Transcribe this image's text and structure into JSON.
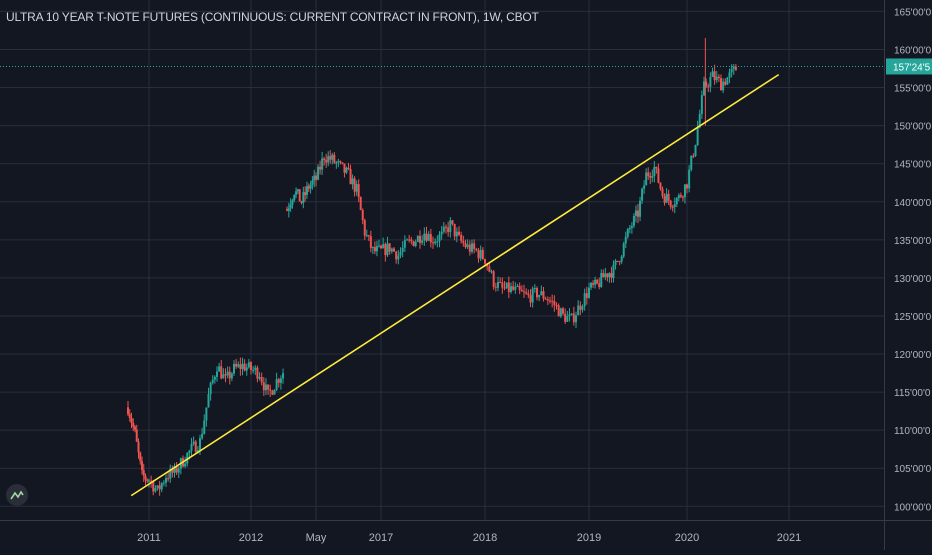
{
  "chart_data": {
    "type": "candlestick",
    "title": "ULTRA 10 YEAR T-NOTE FUTURES (CONTINUOUS: CURRENT CONTRACT IN FRONT), 1W, CBOT",
    "interval": "1W",
    "exchange": "CBOT",
    "y_ticks": [
      "165'00'0",
      "160'00'0",
      "155'00'0",
      "150'00'0",
      "145'00'0",
      "140'00'0",
      "135'00'0",
      "130'00'0",
      "125'00'0",
      "120'00'0",
      "115'00'0",
      "110'00'0",
      "105'00'0",
      "100'00'0"
    ],
    "y_tick_values": [
      165,
      160,
      155,
      150,
      145,
      140,
      135,
      130,
      125,
      120,
      115,
      110,
      105,
      100
    ],
    "ylim": [
      98.2,
      166.5
    ],
    "x_ticks": [
      {
        "label": "2011",
        "date": "2011-01"
      },
      {
        "label": "2012",
        "date": "2012-01"
      },
      {
        "label": "May",
        "date": "2016-05"
      },
      {
        "label": "2017",
        "date": "2017-01"
      },
      {
        "label": "2018",
        "date": "2018-01"
      },
      {
        "label": "2019",
        "date": "2019-01"
      },
      {
        "label": "2020",
        "date": "2020-01"
      },
      {
        "label": "2021",
        "date": "2021-01"
      }
    ],
    "last_price_label": "157'24'5",
    "last_price": 157.77,
    "price_path": [
      [
        "2010-10",
        113
      ],
      [
        "2010-11",
        109.5
      ],
      [
        "2010-12",
        104
      ],
      [
        "2011-01",
        103.5
      ],
      [
        "2011-02",
        102
      ],
      [
        "2011-03",
        104
      ],
      [
        "2011-04",
        104.5
      ],
      [
        "2011-05",
        106
      ],
      [
        "2011-06",
        107.5
      ],
      [
        "2011-07",
        108.5
      ],
      [
        "2011-08",
        114.5
      ],
      [
        "2011-09",
        118.5
      ],
      [
        "2011-10",
        116.5
      ],
      [
        "2011-11",
        118
      ],
      [
        "2011-12",
        118.5
      ],
      [
        "2012-01",
        118
      ],
      [
        "2012-02",
        117.5
      ],
      [
        "2012-03",
        114.5
      ],
      [
        "2012-04",
        116.5
      ],
      [
        "2012-05",
        118
      ],
      [
        "2016-01",
        139
      ],
      [
        "2016-02",
        141.5
      ],
      [
        "2016-03",
        140
      ],
      [
        "2016-04",
        142
      ],
      [
        "2016-05",
        143
      ],
      [
        "2016-06",
        146
      ],
      [
        "2016-07",
        145.5
      ],
      [
        "2016-08",
        144.5
      ],
      [
        "2016-09",
        143.5
      ],
      [
        "2016-10",
        141.5
      ],
      [
        "2016-11",
        136
      ],
      [
        "2016-12",
        133.5
      ],
      [
        "2017-01",
        133.5
      ],
      [
        "2017-02",
        134
      ],
      [
        "2017-03",
        133
      ],
      [
        "2017-04",
        134.5
      ],
      [
        "2017-05",
        135
      ],
      [
        "2017-06",
        136
      ],
      [
        "2017-07",
        135
      ],
      [
        "2017-08",
        135.5
      ],
      [
        "2017-09",
        137
      ],
      [
        "2017-10",
        135
      ],
      [
        "2017-11",
        134
      ],
      [
        "2017-12",
        133.5
      ],
      [
        "2018-01",
        132.5
      ],
      [
        "2018-02",
        129.5
      ],
      [
        "2018-03",
        128.5
      ],
      [
        "2018-04",
        128.5
      ],
      [
        "2018-05",
        128
      ],
      [
        "2018-06",
        127.5
      ],
      [
        "2018-07",
        128
      ],
      [
        "2018-08",
        127.5
      ],
      [
        "2018-09",
        126.5
      ],
      [
        "2018-10",
        125
      ],
      [
        "2018-11",
        124.5
      ],
      [
        "2018-12",
        126.5
      ],
      [
        "2019-01",
        128.5
      ],
      [
        "2019-02",
        129
      ],
      [
        "2019-03",
        130.5
      ],
      [
        "2019-04",
        131
      ],
      [
        "2019-05",
        133.5
      ],
      [
        "2019-06",
        136.5
      ],
      [
        "2019-07",
        138.5
      ],
      [
        "2019-08",
        143.5
      ],
      [
        "2019-09",
        144.5
      ],
      [
        "2019-10",
        141
      ],
      [
        "2019-11",
        140
      ],
      [
        "2019-12",
        140.5
      ],
      [
        "2020-01",
        142.5
      ],
      [
        "2020-02",
        148
      ],
      [
        "2020-03",
        155
      ],
      [
        "2020-04",
        156.5
      ],
      [
        "2020-05",
        155.5
      ],
      [
        "2020-06",
        156.5
      ],
      [
        "2020-07",
        157.8
      ]
    ],
    "trendline": {
      "from": [
        "2010-10-15",
        101.4
      ],
      "to": [
        "2020-11-25",
        156.7
      ],
      "color": "#ffeb3b"
    },
    "colors": {
      "up": "#26a69a",
      "down": "#ef5350",
      "background": "#131722",
      "grid": "#2a2e39",
      "last_price": "#26a69a"
    },
    "grid": true
  }
}
